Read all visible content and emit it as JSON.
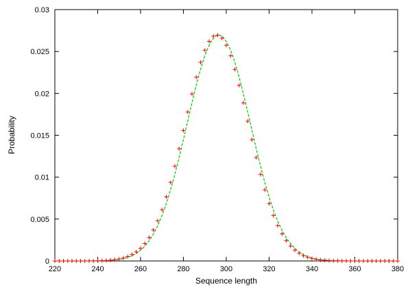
{
  "chart_data": {
    "type": "scatter",
    "title": "",
    "xlabel": "Sequence length",
    "ylabel": "Probability",
    "xlim": [
      220,
      380
    ],
    "ylim": [
      0,
      0.03
    ],
    "x_ticks": [
      "220",
      "240",
      "260",
      "280",
      "300",
      "320",
      "340",
      "360",
      "380"
    ],
    "y_ticks": [
      "0",
      "0.005",
      "0.01",
      "0.015",
      "0.02",
      "0.025",
      "0.03"
    ],
    "grid": false,
    "legend": "none",
    "series": [
      {
        "style": "points-plus",
        "color": "#ff0000",
        "mean": 295.5,
        "sd": 14.8,
        "x_start": 220,
        "x_end": 380,
        "x_step": 2
      },
      {
        "style": "line-dashed",
        "color": "#00cc00",
        "mean": 296.5,
        "sd": 14.8,
        "x_start": 220,
        "x_end": 380
      }
    ]
  }
}
